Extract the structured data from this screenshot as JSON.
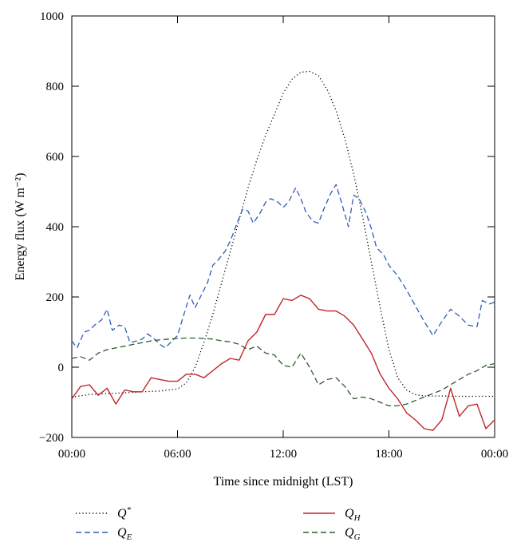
{
  "chart_data": {
    "type": "line",
    "xlabel": "Time since midnight (LST)",
    "ylabel": "Energy flux (W m⁻²)",
    "xlim": [
      0,
      24
    ],
    "ylim": [
      -200,
      1000
    ],
    "x_ticks": [
      {
        "value": 0,
        "label": "00:00"
      },
      {
        "value": 6,
        "label": "06:00"
      },
      {
        "value": 12,
        "label": "12:00"
      },
      {
        "value": 18,
        "label": "18:00"
      },
      {
        "value": 24,
        "label": "00:00"
      }
    ],
    "y_ticks": [
      -200,
      0,
      200,
      400,
      600,
      800,
      1000
    ],
    "legend_position": "bottom",
    "grid": false,
    "series": [
      {
        "name": "Q*",
        "legend_main": "Q",
        "legend_sup": "*",
        "color": "#000000",
        "style": "dotted",
        "x": [
          0,
          1,
          2,
          3,
          4,
          5,
          6,
          6.5,
          7,
          7.5,
          8,
          8.5,
          9,
          9.5,
          10,
          10.5,
          11,
          11.5,
          12,
          12.5,
          13,
          13.5,
          14,
          14.5,
          15,
          15.5,
          16,
          16.5,
          17,
          17.5,
          18,
          18.5,
          19,
          19.5,
          20,
          21,
          22,
          23,
          24
        ],
        "y": [
          -85,
          -78,
          -75,
          -73,
          -70,
          -68,
          -62,
          -45,
          0,
          70,
          150,
          240,
          330,
          420,
          510,
          590,
          660,
          720,
          780,
          820,
          840,
          842,
          830,
          790,
          730,
          650,
          550,
          430,
          300,
          170,
          50,
          -30,
          -65,
          -78,
          -82,
          -82,
          -83,
          -83,
          -83
        ]
      },
      {
        "name": "QE",
        "legend_main": "Q",
        "legend_sub": "E",
        "color": "#2e5fb7",
        "style": "dashed",
        "x": [
          0,
          0.3,
          0.7,
          1,
          1.3,
          1.7,
          2,
          2.3,
          2.7,
          3,
          3.3,
          3.7,
          4,
          4.3,
          4.7,
          5,
          5.3,
          5.7,
          6,
          6.3,
          6.7,
          7,
          7.3,
          7.7,
          8,
          8.3,
          8.7,
          9,
          9.3,
          9.7,
          10,
          10.3,
          10.7,
          11,
          11.3,
          11.7,
          12,
          12.3,
          12.7,
          13,
          13.3,
          13.7,
          14,
          14.3,
          14.7,
          15,
          15.3,
          15.7,
          16,
          16.3,
          16.7,
          17,
          17.3,
          17.7,
          18,
          18.5,
          19,
          19.5,
          20,
          20.5,
          21,
          21.5,
          22,
          22.5,
          23,
          23.3,
          23.7,
          24
        ],
        "y": [
          75,
          55,
          100,
          105,
          120,
          135,
          165,
          105,
          120,
          115,
          70,
          75,
          80,
          95,
          80,
          65,
          55,
          75,
          90,
          140,
          205,
          170,
          200,
          240,
          290,
          305,
          330,
          360,
          400,
          450,
          445,
          410,
          440,
          470,
          480,
          470,
          455,
          470,
          510,
          480,
          440,
          415,
          410,
          450,
          495,
          520,
          470,
          400,
          490,
          480,
          440,
          395,
          340,
          320,
          290,
          260,
          220,
          175,
          130,
          90,
          130,
          165,
          145,
          120,
          115,
          190,
          180,
          185
        ]
      },
      {
        "name": "QH",
        "legend_main": "Q",
        "legend_sub": "H",
        "color": "#c0262c",
        "style": "solid",
        "x": [
          0,
          0.5,
          1,
          1.5,
          2,
          2.5,
          3,
          3.5,
          4,
          4.5,
          5,
          5.5,
          6,
          6.5,
          7,
          7.5,
          8,
          8.5,
          9,
          9.5,
          10,
          10.5,
          11,
          11.5,
          12,
          12.5,
          13,
          13.5,
          14,
          14.5,
          15,
          15.5,
          16,
          16.5,
          17,
          17.5,
          18,
          18.5,
          19,
          19.5,
          20,
          20.5,
          21,
          21.5,
          22,
          22.5,
          23,
          23.5,
          24
        ],
        "y": [
          -90,
          -55,
          -50,
          -80,
          -60,
          -105,
          -65,
          -70,
          -70,
          -30,
          -35,
          -40,
          -40,
          -20,
          -20,
          -30,
          -10,
          10,
          25,
          20,
          75,
          100,
          150,
          150,
          195,
          190,
          205,
          195,
          165,
          160,
          160,
          145,
          120,
          80,
          40,
          -20,
          -60,
          -90,
          -130,
          -150,
          -175,
          -180,
          -150,
          -60,
          -140,
          -110,
          -105,
          -175,
          -150
        ]
      },
      {
        "name": "QG",
        "legend_main": "Q",
        "legend_sub": "G",
        "color": "#2f5a2f",
        "style": "dashed",
        "x": [
          0,
          0.5,
          1,
          1.5,
          2,
          2.5,
          3,
          3.5,
          4,
          4.5,
          5,
          5.5,
          6,
          6.5,
          7,
          7.5,
          8,
          8.5,
          9,
          9.5,
          10,
          10.5,
          11,
          11.5,
          12,
          12.5,
          13,
          13.5,
          14,
          14.5,
          15,
          15.5,
          16,
          16.5,
          17,
          17.5,
          18,
          18.5,
          19,
          19.5,
          20,
          20.5,
          21,
          21.5,
          22,
          22.5,
          23,
          23.5,
          24
        ],
        "y": [
          25,
          30,
          20,
          40,
          50,
          55,
          60,
          65,
          70,
          75,
          78,
          80,
          82,
          83,
          83,
          82,
          80,
          75,
          72,
          65,
          50,
          60,
          40,
          35,
          5,
          0,
          40,
          0,
          -50,
          -35,
          -30,
          -55,
          -90,
          -85,
          -90,
          -100,
          -110,
          -110,
          -105,
          -95,
          -85,
          -75,
          -65,
          -50,
          -35,
          -20,
          -10,
          5,
          10
        ]
      }
    ]
  }
}
